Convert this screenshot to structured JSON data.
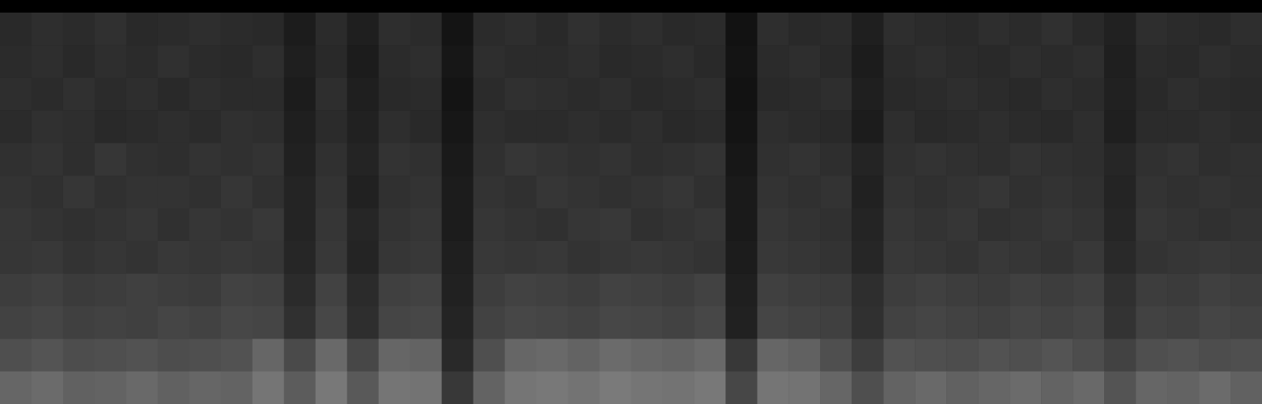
{
  "chart_data": {
    "type": "heatmap",
    "tick_labels": false,
    "cells": [
      [
        16,
        18,
        17,
        19,
        16,
        17,
        18,
        17,
        16,
        11,
        17,
        12,
        18,
        17,
        8,
        17,
        18,
        16,
        19,
        17,
        18,
        16,
        17,
        7,
        18,
        16,
        17,
        12,
        18,
        17,
        16,
        18,
        17,
        19,
        16,
        13,
        18,
        17,
        16,
        18
      ],
      [
        17,
        18,
        16,
        18,
        17,
        19,
        17,
        16,
        18,
        12,
        16,
        11,
        17,
        18,
        9,
        18,
        17,
        17,
        18,
        16,
        17,
        18,
        16,
        8,
        17,
        18,
        16,
        11,
        17,
        18,
        17,
        16,
        18,
        17,
        18,
        12,
        17,
        16,
        18,
        17
      ],
      [
        18,
        17,
        19,
        17,
        18,
        16,
        18,
        17,
        17,
        11,
        18,
        12,
        16,
        17,
        8,
        17,
        19,
        18,
        17,
        18,
        16,
        17,
        18,
        7,
        16,
        17,
        18,
        12,
        16,
        17,
        18,
        17,
        16,
        18,
        17,
        13,
        16,
        18,
        17,
        16
      ],
      [
        17,
        19,
        18,
        16,
        17,
        18,
        17,
        19,
        18,
        12,
        17,
        13,
        18,
        16,
        9,
        18,
        17,
        17,
        18,
        17,
        18,
        16,
        17,
        8,
        18,
        17,
        16,
        11,
        18,
        16,
        17,
        18,
        17,
        16,
        18,
        12,
        17,
        17,
        18,
        17
      ],
      [
        19,
        20,
        18,
        21,
        19,
        18,
        20,
        19,
        20,
        13,
        19,
        14,
        20,
        19,
        10,
        19,
        21,
        20,
        19,
        20,
        18,
        19,
        20,
        9,
        19,
        20,
        18,
        14,
        19,
        20,
        19,
        18,
        20,
        19,
        18,
        15,
        19,
        20,
        18,
        19
      ],
      [
        20,
        19,
        21,
        19,
        20,
        20,
        19,
        21,
        19,
        14,
        20,
        13,
        19,
        20,
        11,
        20,
        19,
        21,
        20,
        19,
        20,
        21,
        19,
        10,
        20,
        19,
        20,
        13,
        20,
        19,
        20,
        21,
        19,
        20,
        19,
        14,
        20,
        19,
        20,
        19
      ],
      [
        21,
        20,
        19,
        20,
        21,
        19,
        21,
        20,
        22,
        14,
        21,
        15,
        20,
        21,
        11,
        21,
        20,
        19,
        21,
        22,
        19,
        20,
        21,
        10,
        21,
        20,
        19,
        14,
        21,
        20,
        21,
        19,
        20,
        21,
        20,
        15,
        21,
        20,
        19,
        20
      ],
      [
        21,
        22,
        20,
        21,
        20,
        22,
        21,
        22,
        21,
        15,
        22,
        14,
        21,
        22,
        12,
        22,
        21,
        22,
        20,
        21,
        22,
        21,
        20,
        11,
        22,
        21,
        20,
        15,
        22,
        21,
        20,
        22,
        21,
        20,
        22,
        16,
        20,
        21,
        22,
        21
      ],
      [
        24,
        25,
        23,
        24,
        25,
        24,
        23,
        26,
        25,
        17,
        26,
        17,
        25,
        26,
        13,
        24,
        26,
        25,
        24,
        26,
        25,
        24,
        26,
        12,
        25,
        24,
        23,
        18,
        24,
        25,
        24,
        23,
        25,
        24,
        25,
        19,
        24,
        23,
        25,
        24
      ],
      [
        26,
        27,
        25,
        26,
        25,
        27,
        26,
        28,
        27,
        19,
        28,
        18,
        27,
        28,
        14,
        26,
        28,
        27,
        26,
        28,
        27,
        26,
        28,
        13,
        27,
        26,
        25,
        19,
        26,
        27,
        26,
        25,
        27,
        26,
        27,
        20,
        26,
        25,
        27,
        26
      ],
      [
        31,
        33,
        30,
        31,
        32,
        30,
        31,
        32,
        40,
        29,
        41,
        28,
        40,
        39,
        16,
        31,
        40,
        41,
        39,
        42,
        40,
        39,
        41,
        22,
        40,
        38,
        31,
        24,
        32,
        31,
        30,
        32,
        31,
        33,
        30,
        26,
        31,
        32,
        30,
        31
      ],
      [
        40,
        42,
        38,
        39,
        41,
        38,
        40,
        39,
        46,
        36,
        47,
        35,
        46,
        45,
        22,
        39,
        46,
        47,
        45,
        48,
        46,
        45,
        47,
        28,
        46,
        45,
        40,
        31,
        39,
        41,
        38,
        40,
        42,
        39,
        41,
        33,
        40,
        39,
        42,
        38
      ]
    ]
  }
}
